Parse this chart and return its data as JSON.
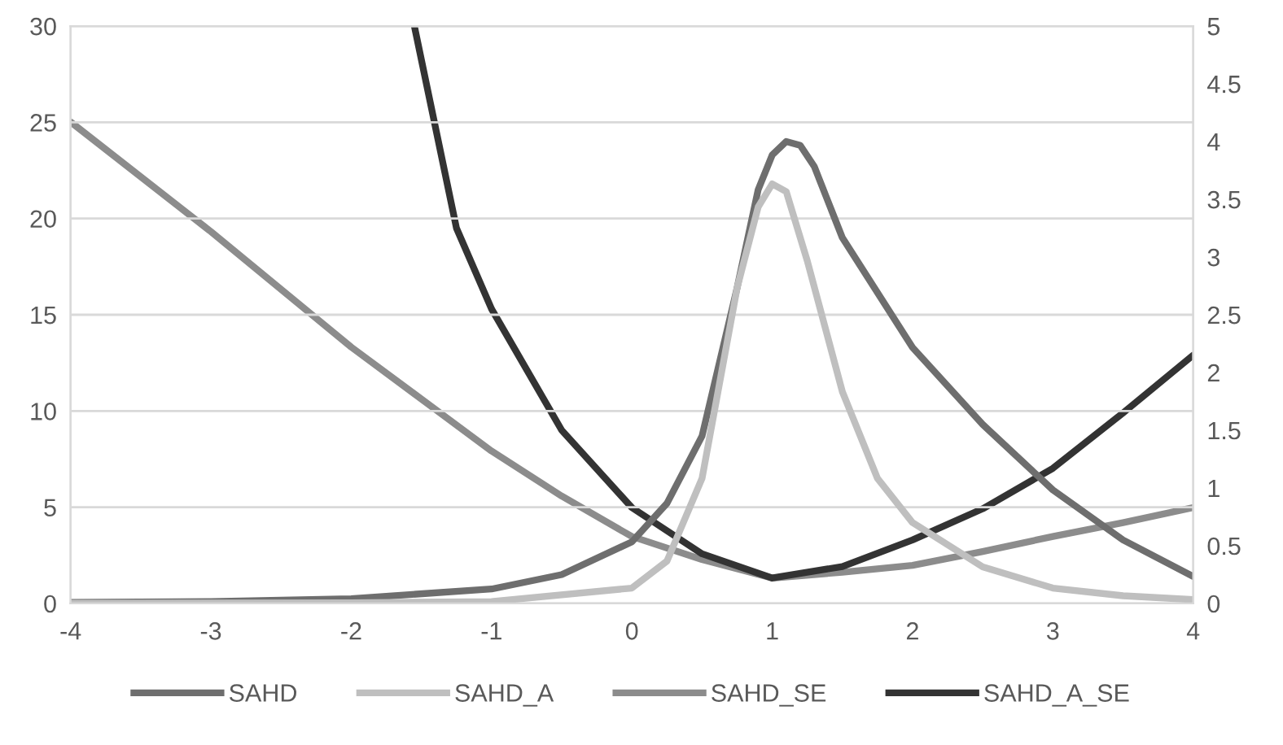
{
  "chart_data": {
    "type": "line",
    "xlim": [
      -4,
      4
    ],
    "xticks": [
      -4,
      -3,
      -2,
      -1,
      0,
      1,
      2,
      3,
      4
    ],
    "ylim": [
      0,
      30
    ],
    "yticks": [
      0,
      5,
      10,
      15,
      20,
      25,
      30
    ],
    "y2lim": [
      0,
      5
    ],
    "y2ticks": [
      0,
      0.5,
      1,
      1.5,
      2,
      2.5,
      3,
      3.5,
      4,
      4.5,
      5
    ],
    "grid": "y",
    "legend": "bottom",
    "marker": "none",
    "line_style": "solid",
    "series": [
      {
        "name": "SAHD",
        "color": "#6e6e6e",
        "x": [
          -4,
          -3,
          -2,
          -1,
          -0.5,
          0,
          0.25,
          0.5,
          0.75,
          0.9,
          1.0,
          1.1,
          1.2,
          1.3,
          1.5,
          2,
          2.5,
          3,
          3.5,
          4
        ],
        "values": [
          0.05,
          0.1,
          0.25,
          0.75,
          1.5,
          3.2,
          5.2,
          8.7,
          16.4,
          21.5,
          23.3,
          24,
          23.8,
          22.7,
          19,
          13.3,
          9.3,
          5.9,
          3.3,
          1.4
        ]
      },
      {
        "name": "SAHD_A",
        "color": "#bfbfbf",
        "x": [
          -4,
          -2,
          -1,
          0,
          0.25,
          0.5,
          0.75,
          0.9,
          1.0,
          1.1,
          1.25,
          1.5,
          1.75,
          2,
          2.5,
          3,
          3.5,
          4
        ],
        "values": [
          0.01,
          0.03,
          0.1,
          0.8,
          2.2,
          6.5,
          16.4,
          20.6,
          21.8,
          21.4,
          17.8,
          11,
          6.5,
          4.2,
          1.9,
          0.8,
          0.4,
          0.2
        ]
      },
      {
        "name": "SAHD_SE",
        "color": "#8c8c8c",
        "axis": "y2",
        "x": [
          -4,
          -3,
          -2,
          -1,
          -0.5,
          0,
          0.5,
          1,
          1.5,
          2,
          2.5,
          3,
          3.5,
          4
        ],
        "values": [
          4.17,
          3.22,
          2.22,
          1.32,
          0.93,
          0.58,
          0.38,
          0.22,
          0.27,
          0.33,
          0.45,
          0.58,
          0.7,
          0.83
        ]
      },
      {
        "name": "SAHD_A_SE",
        "color": "#333333",
        "axis": "y2",
        "x": [
          -1.55,
          -1.25,
          -1,
          -0.5,
          0,
          0.5,
          1,
          1.5,
          2,
          2.5,
          3,
          3.5,
          4
        ],
        "values": [
          5.0,
          3.25,
          2.55,
          1.5,
          0.83,
          0.43,
          0.22,
          0.32,
          0.55,
          0.82,
          1.17,
          1.65,
          2.15
        ]
      }
    ]
  }
}
